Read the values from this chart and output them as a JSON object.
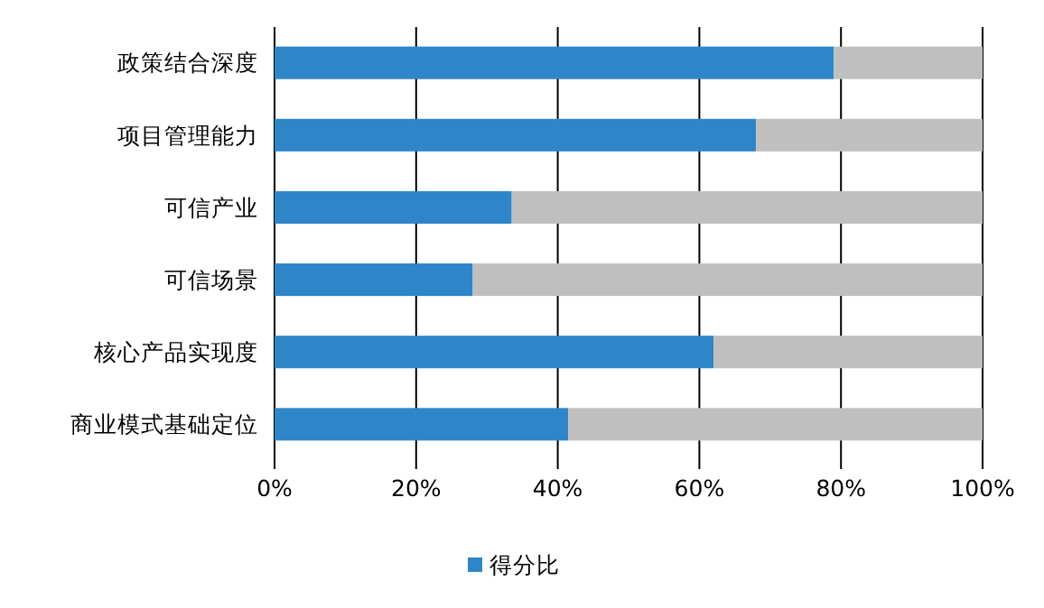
{
  "chart_data": {
    "type": "bar",
    "orientation": "horizontal",
    "stacked": true,
    "categories": [
      "政策结合深度",
      "项目管理能力",
      "可信产业",
      "可信场景",
      "核心产品实现度",
      "商业模式基础定位"
    ],
    "series": [
      {
        "name": "得分比",
        "color": "#2e86c8",
        "values": [
          79,
          68,
          33.5,
          28,
          62,
          41.5
        ]
      },
      {
        "color": "#bfbfbf",
        "values": [
          21,
          32,
          66.5,
          72,
          38,
          58.5
        ]
      }
    ],
    "xlim": [
      0,
      100
    ],
    "xticks": [
      {
        "value": 0,
        "label": "0%"
      },
      {
        "value": 20,
        "label": "20%"
      },
      {
        "value": 40,
        "label": "40%"
      },
      {
        "value": 60,
        "label": "60%"
      },
      {
        "value": 80,
        "label": "80%"
      },
      {
        "value": 100,
        "label": "100%"
      }
    ],
    "grid": "x",
    "legend": "bottom"
  }
}
